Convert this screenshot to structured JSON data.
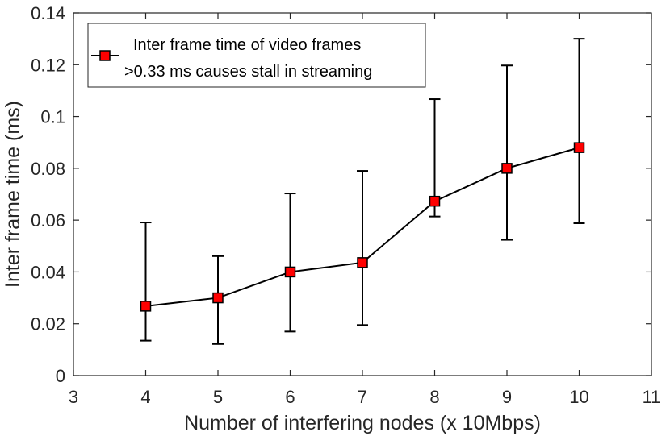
{
  "chart_data": {
    "type": "line",
    "xlabel": "Number of interfering nodes (x 10Mbps)",
    "ylabel": "Inter frame time (ms)",
    "xlim": [
      3,
      11
    ],
    "ylim": [
      0,
      0.14
    ],
    "xticks": [
      "3",
      "4",
      "5",
      "6",
      "7",
      "8",
      "9",
      "10",
      "11"
    ],
    "yticks": [
      "0",
      "0.02",
      "0.04",
      "0.06",
      "0.08",
      "0.1",
      "0.12",
      "0.14"
    ],
    "grid": false,
    "legend_position": "top-left",
    "series": [
      {
        "name": "Inter frame time of video frames\n>0.33 ms causes stall in streaming",
        "legend_lines": [
          "Inter frame time of video frames",
          ">0.33 ms causes stall in streaming"
        ],
        "marker": "square",
        "color": "#ff0000",
        "line_color": "#000000",
        "x": [
          4,
          5,
          6,
          7,
          8,
          9,
          10
        ],
        "y": [
          0.0268,
          0.03,
          0.04,
          0.0436,
          0.0673,
          0.08,
          0.088
        ],
        "err_low": [
          0.0135,
          0.0122,
          0.017,
          0.0195,
          0.0614,
          0.0524,
          0.0588
        ],
        "err_high": [
          0.0591,
          0.0461,
          0.0703,
          0.079,
          0.1067,
          0.1197,
          0.13
        ]
      }
    ]
  }
}
